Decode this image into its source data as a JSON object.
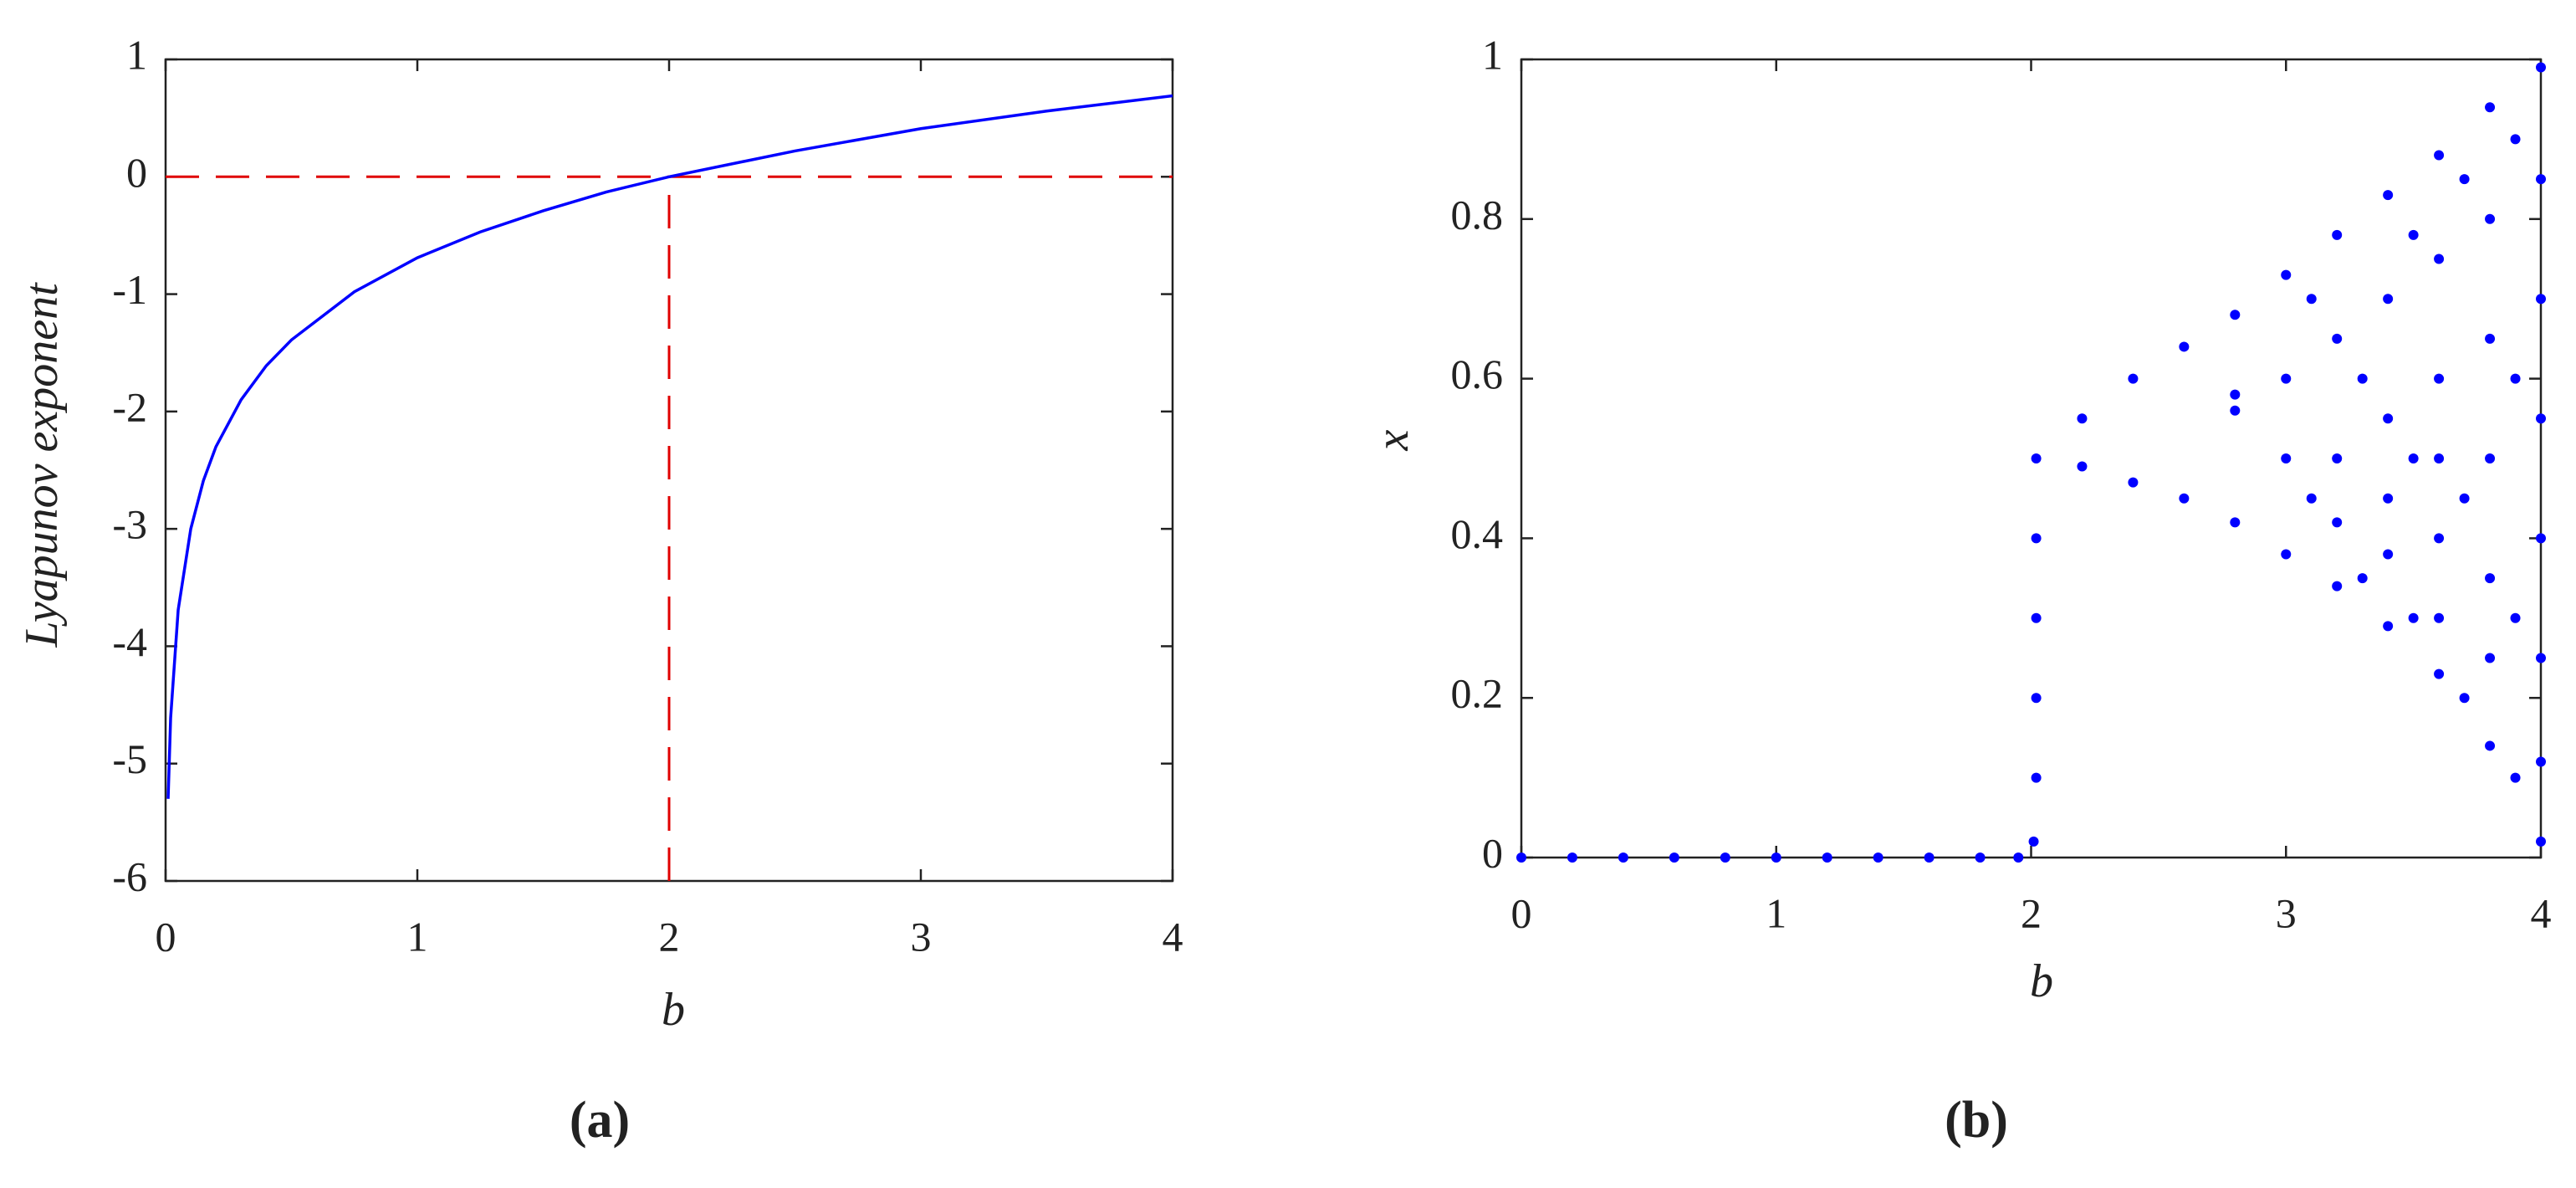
{
  "chart_data": [
    {
      "type": "line",
      "label": "(a)",
      "xlabel": "b",
      "ylabel": "Lyapunov exponent",
      "color": "#0000ff",
      "x": [
        0.01,
        0.02,
        0.05,
        0.1,
        0.15,
        0.2,
        0.3,
        0.4,
        0.5,
        0.75,
        1,
        1.25,
        1.5,
        1.75,
        2,
        2.5,
        3,
        3.5,
        4
      ],
      "values": [
        -5.3,
        -4.61,
        -3.69,
        -3.0,
        -2.59,
        -2.3,
        -1.9,
        -1.61,
        -1.39,
        -0.98,
        -0.69,
        -0.47,
        -0.29,
        -0.13,
        0,
        0.22,
        0.41,
        0.56,
        0.69
      ],
      "ref_lines": {
        "y": 0,
        "x": 2,
        "color": "#e00000"
      },
      "xlim": [
        0,
        4
      ],
      "xticks": [
        0,
        1,
        2,
        3,
        4
      ],
      "ylim": [
        -6,
        1
      ],
      "yticks": [
        -6,
        -5,
        -4,
        -3,
        -2,
        -1,
        0,
        1
      ]
    },
    {
      "type": "scatter",
      "label": "(b)",
      "xlabel": "b",
      "ylabel": "x",
      "color": "#0000ff",
      "x": [
        0,
        0.2,
        0.4,
        0.6,
        0.8,
        1,
        1.2,
        1.4,
        1.6,
        1.8,
        1.95,
        2.01,
        2.02,
        2.02,
        2.02,
        2.02,
        2.02,
        2.2,
        2.2,
        2.4,
        2.4,
        2.6,
        2.6,
        2.8,
        2.8,
        2.8,
        2.8,
        3.0,
        3.0,
        3.0,
        3.0,
        3.1,
        3.1,
        3.2,
        3.2,
        3.2,
        3.2,
        3.2,
        3.3,
        3.3,
        3.4,
        3.4,
        3.4,
        3.4,
        3.4,
        3.4,
        3.5,
        3.5,
        3.5,
        3.6,
        3.6,
        3.6,
        3.6,
        3.6,
        3.6,
        3.6,
        3.7,
        3.7,
        3.7,
        3.8,
        3.8,
        3.8,
        3.8,
        3.8,
        3.8,
        3.8,
        3.9,
        3.9,
        3.9,
        3.9,
        4.0,
        4.0,
        4.0,
        4.0,
        4.0,
        4.0,
        4.0,
        4.0
      ],
      "values": [
        0,
        0,
        0,
        0,
        0,
        0,
        0,
        0,
        0,
        0,
        0,
        0.02,
        0.1,
        0.2,
        0.3,
        0.4,
        0.5,
        0.55,
        0.49,
        0.6,
        0.47,
        0.64,
        0.45,
        0.68,
        0.42,
        0.58,
        0.56,
        0.73,
        0.38,
        0.6,
        0.5,
        0.7,
        0.45,
        0.78,
        0.34,
        0.65,
        0.5,
        0.42,
        0.6,
        0.35,
        0.83,
        0.29,
        0.7,
        0.55,
        0.45,
        0.38,
        0.78,
        0.5,
        0.3,
        0.88,
        0.23,
        0.75,
        0.6,
        0.5,
        0.4,
        0.3,
        0.85,
        0.45,
        0.2,
        0.94,
        0.14,
        0.8,
        0.65,
        0.5,
        0.35,
        0.25,
        0.9,
        0.6,
        0.3,
        0.1,
        0.99,
        0.02,
        0.85,
        0.7,
        0.55,
        0.4,
        0.25,
        0.12
      ],
      "xlim": [
        0,
        4
      ],
      "xticks": [
        0,
        1,
        2,
        3,
        4
      ],
      "ylim": [
        0,
        1
      ],
      "yticks": [
        0,
        0.2,
        0.4,
        0.6,
        0.8,
        1
      ]
    }
  ]
}
